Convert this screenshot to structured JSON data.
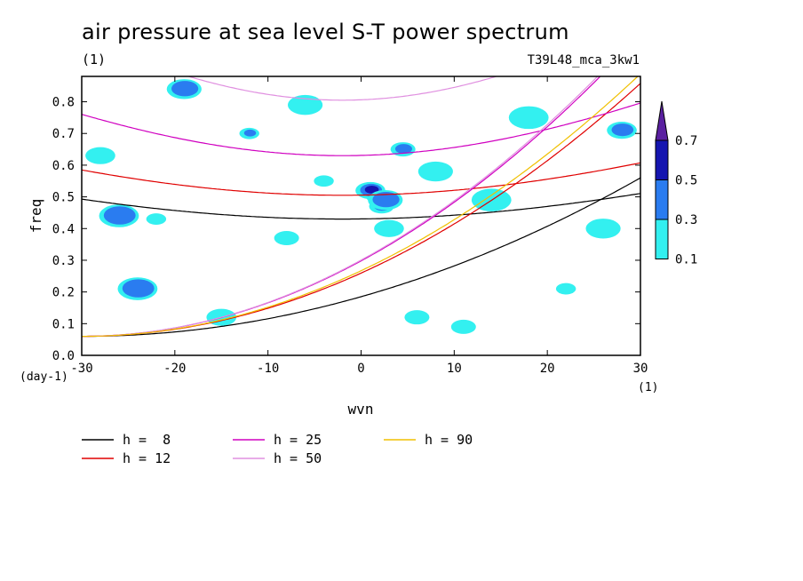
{
  "chart_data": {
    "type": "contour",
    "title": "air pressure at sea level S-T power spectrum",
    "subtitle_left": "(1)",
    "subtitle_right": "T39L48_mca_3kw1",
    "xlabel": "wvn",
    "ylabel": "freq",
    "x_unit": "(1)",
    "y_unit": "(day-1)",
    "xlim": [
      -30,
      30
    ],
    "ylim": [
      0,
      0.88
    ],
    "x_ticks": [
      -30,
      -20,
      -10,
      0,
      10,
      20,
      30
    ],
    "x_tick_labels": [
      "-30",
      "-20",
      "-10",
      "0",
      "10",
      "20",
      "30"
    ],
    "y_ticks": [
      0,
      0.1,
      0.2,
      0.3,
      0.4,
      0.5,
      0.6,
      0.7,
      0.8
    ],
    "y_tick_labels": [
      "0.0",
      "0.1",
      "0.2",
      "0.3",
      "0.4",
      "0.5",
      "0.6",
      "0.7",
      "0.8"
    ],
    "colorbar": {
      "levels": [
        "0.1",
        "0.3",
        "0.5",
        "0.7"
      ],
      "colors": [
        "#33f0f0",
        "#2a7cf0",
        "#1515b0",
        "#5a20a0"
      ]
    },
    "contour_patches": [
      {
        "x": 1.6,
        "y": 0.5,
        "level": 3
      },
      {
        "x": 2.2,
        "y": 0.47,
        "level": 2
      },
      {
        "x": 1.0,
        "y": 0.52,
        "level": 2
      },
      {
        "x": 2.6,
        "y": 0.49,
        "level": 1
      },
      {
        "x": -24,
        "y": 0.21,
        "level": 1
      },
      {
        "x": -12,
        "y": 0.7,
        "level": 1
      },
      {
        "x": 4.5,
        "y": 0.65,
        "level": 1
      },
      {
        "x": 28,
        "y": 0.71,
        "level": 1
      },
      {
        "x": -19,
        "y": 0.84,
        "level": 1
      },
      {
        "x": -26,
        "y": 0.44,
        "level": 1
      },
      {
        "x": -22,
        "y": 0.43,
        "level": 0
      },
      {
        "x": -8,
        "y": 0.37,
        "level": 0
      },
      {
        "x": 3,
        "y": 0.4,
        "level": 0
      },
      {
        "x": 8,
        "y": 0.58,
        "level": 0
      },
      {
        "x": 14,
        "y": 0.49,
        "level": 0
      },
      {
        "x": 22,
        "y": 0.21,
        "level": 0
      },
      {
        "x": 6,
        "y": 0.12,
        "level": 0
      },
      {
        "x": -15,
        "y": 0.12,
        "level": 0
      },
      {
        "x": 26,
        "y": 0.4,
        "level": 0
      },
      {
        "x": 18,
        "y": 0.75,
        "level": 0
      },
      {
        "x": -4,
        "y": 0.55,
        "level": 0
      },
      {
        "x": 11,
        "y": 0.09,
        "level": 0
      },
      {
        "x": -28,
        "y": 0.63,
        "level": 0
      },
      {
        "x": -6,
        "y": 0.79,
        "level": 0
      }
    ],
    "series": [
      {
        "name": "h =  8",
        "h": 8,
        "color": "#000000"
      },
      {
        "name": "h = 12",
        "h": 12,
        "color": "#e00000"
      },
      {
        "name": "h = 25",
        "h": 25,
        "color": "#d000c0"
      },
      {
        "name": "h = 50",
        "h": 50,
        "color": "#e090e0"
      },
      {
        "name": "h = 90",
        "h": 90,
        "color": "#f0c000"
      }
    ]
  }
}
